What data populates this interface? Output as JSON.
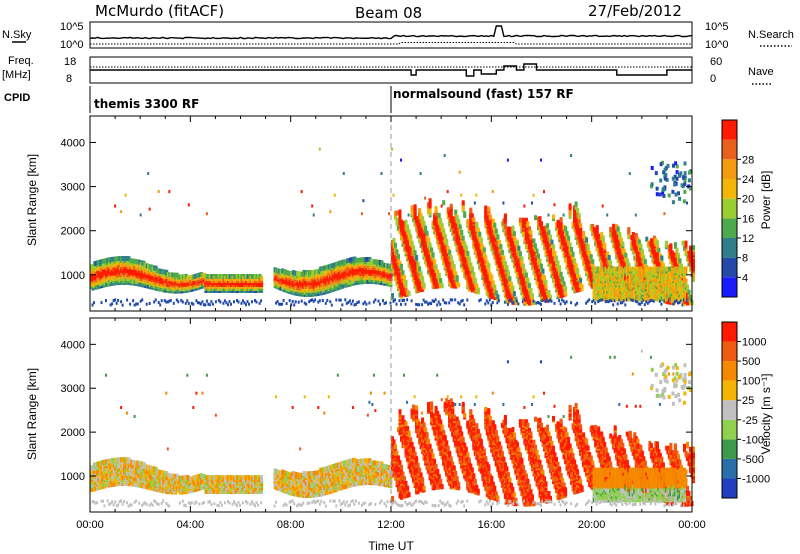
{
  "header": {
    "station": "McMurdo (fitACF)",
    "beam": "Beam 08",
    "date": "27/Feb/2012"
  },
  "top_panels": {
    "nsky_label": "N.Sky",
    "nsearch_label": "N.Search",
    "noise_ticks_left": [
      "10^5",
      "10^0"
    ],
    "noise_ticks_right": [
      "10^5",
      "10^0"
    ],
    "freq_label_1": "Freq.",
    "freq_label_2": "[MHz]",
    "freq_ticks": [
      "18",
      "8"
    ],
    "nave_label": "Nave",
    "nave_ticks": [
      "60",
      "0"
    ],
    "cpid_label": "CPID",
    "cpid_segments": [
      "themis 3300 RF",
      "normalsound (fast) 157 RF"
    ],
    "cpid_switch_hour": 12
  },
  "chart_data": [
    {
      "type": "heatmap",
      "title": "",
      "ylabel": "Slant Range [km]",
      "xlabel": "",
      "ylim": [
        180,
        4600
      ],
      "yticks": [
        1000,
        2000,
        3000,
        4000
      ],
      "xlim": [
        0,
        24
      ],
      "colorbar_label": "Power [dB]",
      "colorbar_ticks": [
        "4",
        "8",
        "12",
        "16",
        "20",
        "24",
        "28"
      ],
      "colors": [
        "#1a1aff",
        "#234aa8",
        "#2f7e8c",
        "#4caa4c",
        "#9acd32",
        "#f2b705",
        "#f39c12",
        "#e8601c",
        "#ff1a00"
      ]
    },
    {
      "type": "heatmap",
      "title": "",
      "ylabel": "Slant Range [km]",
      "xlabel": "Time UT",
      "ylim": [
        180,
        4600
      ],
      "yticks": [
        1000,
        2000,
        3000,
        4000
      ],
      "xlim": [
        0,
        24
      ],
      "xticks": [
        "00:00",
        "04:00",
        "08:00",
        "12:00",
        "16:00",
        "20:00",
        "00:00"
      ],
      "colorbar_label": "Velocity [m s⁻¹]",
      "colorbar_ticks": [
        "1000",
        "500",
        "100",
        "25",
        "-25",
        "-100",
        "-500",
        "-1000"
      ],
      "colors": [
        "#1f3fbf",
        "#2a6fa8",
        "#3d9a4a",
        "#8fd14f",
        "#c0c0c0",
        "#f5b400",
        "#f58a00",
        "#f05a10",
        "#ff1a00"
      ]
    }
  ]
}
